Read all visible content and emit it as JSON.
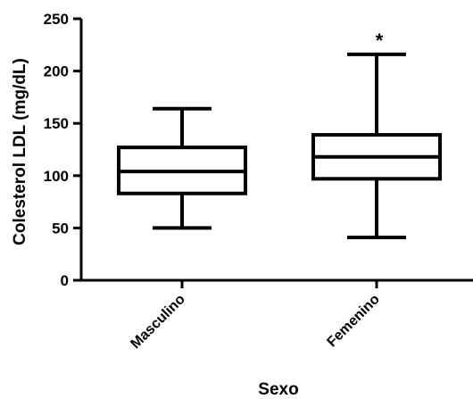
{
  "chart_data": {
    "type": "box",
    "xlabel": "Sexo",
    "ylabel": "Colesterol  LDL  (mg/dL)",
    "ylim": [
      0,
      250
    ],
    "yticks": [
      "0",
      "50",
      "100",
      "150",
      "200",
      "250"
    ],
    "grid": false,
    "categories": [
      "Masculino",
      "Femenino"
    ],
    "boxes": [
      {
        "name": "Masculino",
        "min": 50,
        "q1": 83,
        "median": 104,
        "q3": 127,
        "max": 164,
        "annotation": ""
      },
      {
        "name": "Femenino",
        "min": 41,
        "q1": 97,
        "median": 118,
        "q3": 139,
        "max": 216,
        "annotation": "*"
      }
    ],
    "colors": {
      "stroke": "#000000",
      "background": "#ffffff"
    }
  }
}
